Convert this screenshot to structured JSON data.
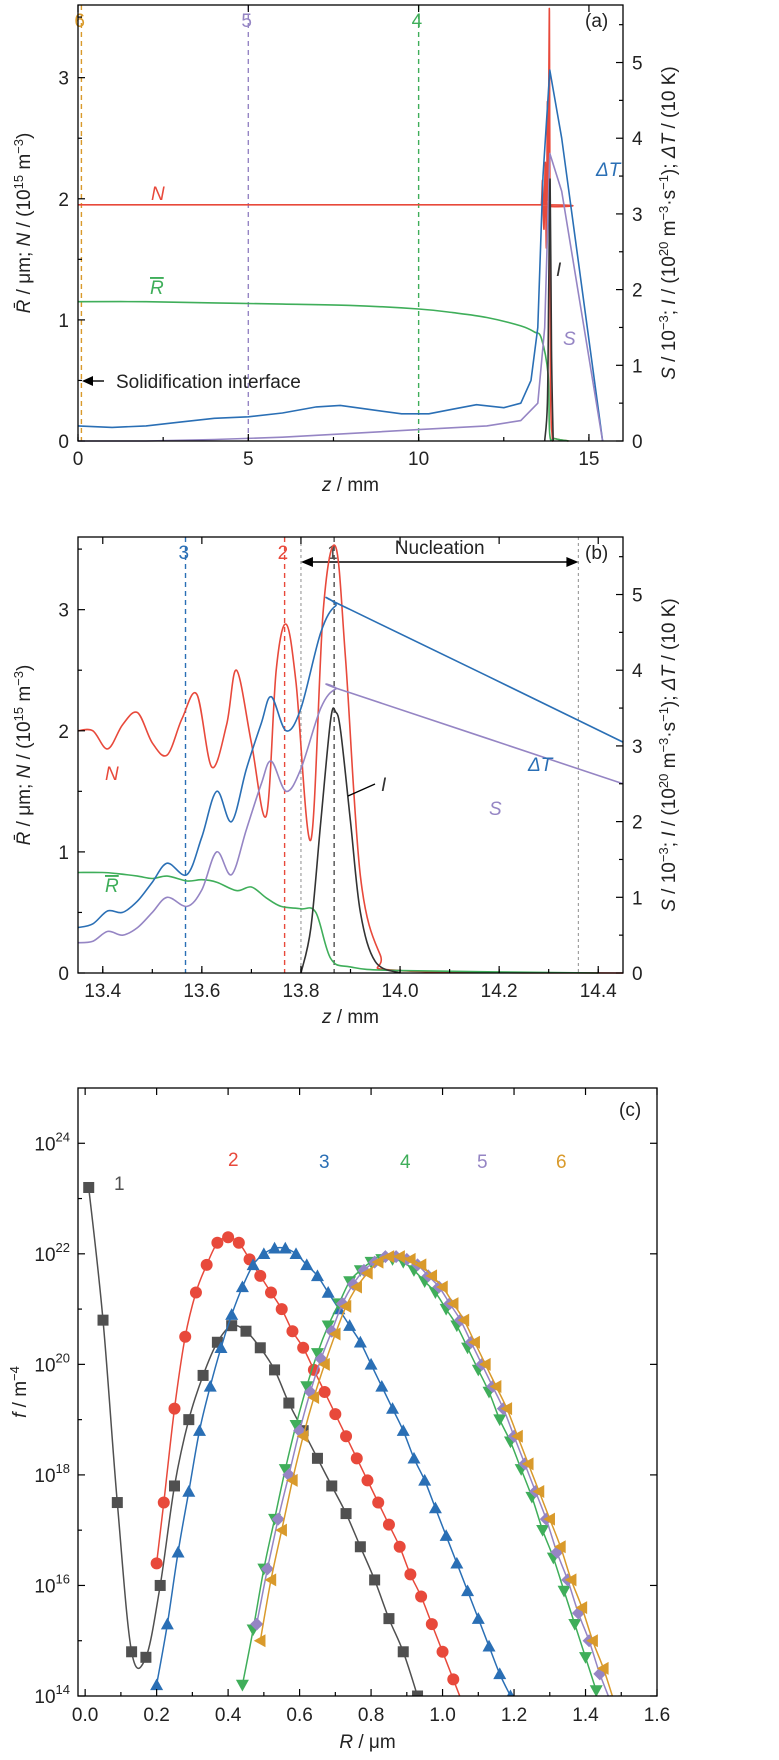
{
  "colors": {
    "N": "#e8493b",
    "Rbar": "#3fae5a",
    "dT": "#2a6fb5",
    "S": "#9585c4",
    "I": "#333333",
    "c1": "#505050",
    "c2": "#e8493b",
    "c3": "#2a6fb5",
    "c4": "#3fae5a",
    "c5": "#9585c4",
    "c6": "#d99a2b",
    "ref": "#a0a0a0"
  },
  "chart_data": [
    {
      "type": "line",
      "panel": "(a)",
      "xlabel": "z / mm",
      "ylabel_left": "R̄ / μm; N / (10¹⁵ m⁻³)",
      "ylabel_right": "S / 10⁻³; I / (10²⁰ m⁻³·s⁻¹); ΔT / (10 K)",
      "xlim": [
        0,
        16
      ],
      "ylim_left": [
        0,
        3.6
      ],
      "ylim_right": [
        0,
        5.76
      ],
      "xticks": [
        "0",
        "5",
        "10",
        "15"
      ],
      "yticks_left": [
        "0",
        "1",
        "2",
        "3"
      ],
      "yticks_right": [
        "0",
        "1",
        "2",
        "3",
        "4",
        "5"
      ],
      "vlines": [
        {
          "label": "6",
          "x": 0.1,
          "color": "#d99a2b"
        },
        {
          "label": "5",
          "x": 5.0,
          "color": "#9585c4"
        },
        {
          "label": "4",
          "x": 10.0,
          "color": "#3fae5a"
        }
      ],
      "annotation": "Solidification interface",
      "series": [
        {
          "name": "N",
          "axis": "left",
          "x": [
            0,
            13.5,
            13.6,
            13.64,
            13.68,
            13.72,
            13.75,
            13.78,
            13.8,
            13.84,
            13.87,
            13.92,
            14.0,
            14.4
          ],
          "y": [
            1.95,
            1.95,
            1.95,
            2.15,
            1.75,
            2.3,
            1.6,
            2.8,
            2.0,
            3.55,
            0.6,
            0.05,
            0.02,
            0.0
          ]
        },
        {
          "name": "R̄",
          "axis": "left",
          "x": [
            0,
            2,
            4,
            6,
            8,
            10,
            11,
            12,
            13,
            13.4,
            13.6,
            13.8,
            13.85,
            14.0,
            14.4
          ],
          "y": [
            1.15,
            1.15,
            1.14,
            1.13,
            1.12,
            1.09,
            1.06,
            1.02,
            0.95,
            0.9,
            0.85,
            0.55,
            0.05,
            0.02,
            0.0
          ]
        },
        {
          "name": "ΔT",
          "axis": "right",
          "x": [
            0,
            1,
            2,
            3,
            4,
            5,
            6,
            7,
            7.7,
            8.5,
            9.5,
            10.3,
            11,
            11.7,
            12.5,
            13.0,
            13.3,
            13.5,
            13.65,
            13.85,
            14.2,
            15.4
          ],
          "y": [
            0.2,
            0.18,
            0.2,
            0.25,
            0.3,
            0.32,
            0.37,
            0.45,
            0.47,
            0.42,
            0.36,
            0.36,
            0.42,
            0.48,
            0.44,
            0.5,
            0.8,
            1.5,
            3.5,
            4.9,
            4.0,
            0.0
          ]
        },
        {
          "name": "S",
          "axis": "right",
          "x": [
            0,
            2,
            4,
            6,
            8,
            10,
            12,
            13,
            13.5,
            13.7,
            13.85,
            14.2,
            15.4
          ],
          "y": [
            0.0,
            0.0,
            0.02,
            0.05,
            0.1,
            0.15,
            0.2,
            0.27,
            0.5,
            1.5,
            3.8,
            3.3,
            0.0
          ]
        },
        {
          "name": "I",
          "axis": "right",
          "x": [
            13.7,
            13.78,
            13.82,
            13.86,
            13.9,
            13.95
          ],
          "y": [
            0.0,
            0.5,
            2.0,
            3.45,
            1.2,
            0.0
          ]
        }
      ]
    },
    {
      "type": "line",
      "panel": "(b)",
      "xlabel": "z / mm",
      "ylabel_left": "R̄ / μm; N / (10¹⁵ m⁻³)",
      "ylabel_right": "S / 10⁻³; I / (10²⁰ m⁻³·s⁻¹); ΔT / (10 K)",
      "xlim": [
        13.35,
        14.45
      ],
      "ylim_left": [
        0,
        3.6
      ],
      "ylim_right": [
        0,
        5.76
      ],
      "xticks": [
        "13.4",
        "13.6",
        "13.8",
        "14.0",
        "14.2",
        "14.4"
      ],
      "yticks_left": [
        "0",
        "1",
        "2",
        "3"
      ],
      "yticks_right": [
        "0",
        "1",
        "2",
        "3",
        "4",
        "5"
      ],
      "vlines": [
        {
          "label": "3",
          "x": 13.567,
          "color": "#2a6fb5"
        },
        {
          "label": "2",
          "x": 13.767,
          "color": "#e8493b"
        },
        {
          "label": "1",
          "x": 13.867,
          "color": "#505050"
        }
      ],
      "nucleation_range": [
        13.8,
        14.36
      ],
      "annotation": "Nucleation",
      "series": [
        {
          "name": "N",
          "axis": "left",
          "x": [
            13.35,
            13.38,
            13.41,
            13.44,
            13.47,
            13.5,
            13.53,
            13.56,
            13.59,
            13.62,
            13.65,
            13.67,
            13.7,
            13.73,
            13.75,
            13.77,
            13.79,
            13.82,
            13.845,
            13.87,
            13.89,
            13.92,
            13.96,
            14.0,
            14.45
          ],
          "y": [
            2.0,
            2.0,
            1.85,
            2.05,
            2.15,
            1.9,
            1.8,
            2.1,
            2.3,
            1.7,
            2.05,
            2.5,
            1.9,
            1.3,
            2.5,
            2.88,
            2.4,
            1.1,
            3.0,
            3.52,
            2.6,
            0.8,
            0.15,
            0.02,
            0.0
          ]
        },
        {
          "name": "R̄",
          "axis": "left",
          "x": [
            13.35,
            13.4,
            13.43,
            13.47,
            13.5,
            13.53,
            13.57,
            13.6,
            13.63,
            13.67,
            13.7,
            13.73,
            13.76,
            13.8,
            13.83,
            13.86,
            13.9,
            14.0,
            14.4
          ],
          "y": [
            0.83,
            0.83,
            0.82,
            0.8,
            0.78,
            0.8,
            0.76,
            0.77,
            0.75,
            0.68,
            0.71,
            0.62,
            0.55,
            0.53,
            0.5,
            0.12,
            0.05,
            0.02,
            0.0
          ]
        },
        {
          "name": "ΔT",
          "axis": "right",
          "x": [
            13.35,
            13.38,
            13.41,
            13.44,
            13.47,
            13.5,
            13.53,
            13.57,
            13.6,
            13.63,
            13.66,
            13.69,
            13.72,
            13.74,
            13.77,
            13.8,
            13.84,
            13.87,
            13.9,
            14.45
          ],
          "y": [
            0.6,
            0.65,
            0.82,
            0.8,
            0.95,
            1.2,
            1.45,
            1.3,
            1.8,
            2.4,
            2.0,
            2.7,
            3.3,
            3.65,
            3.2,
            3.5,
            4.5,
            4.85,
            4.8,
            3.05
          ]
        },
        {
          "name": "S",
          "axis": "right",
          "x": [
            13.35,
            13.38,
            13.41,
            13.44,
            13.47,
            13.5,
            13.53,
            13.57,
            13.6,
            13.63,
            13.66,
            13.69,
            13.72,
            13.74,
            13.77,
            13.8,
            13.84,
            13.87,
            13.9,
            14.45
          ],
          "y": [
            0.4,
            0.42,
            0.55,
            0.5,
            0.6,
            0.8,
            1.0,
            0.88,
            1.1,
            1.6,
            1.3,
            1.9,
            2.5,
            2.8,
            2.4,
            2.7,
            3.5,
            3.75,
            3.7,
            2.5
          ]
        },
        {
          "name": "I",
          "axis": "right",
          "x": [
            13.8,
            13.82,
            13.84,
            13.86,
            13.87,
            13.88,
            13.9,
            13.92,
            13.95,
            14.0
          ],
          "y": [
            0.0,
            0.6,
            2.0,
            3.35,
            3.45,
            3.2,
            2.0,
            0.8,
            0.15,
            0.0
          ]
        }
      ]
    },
    {
      "type": "scatter",
      "panel": "(c)",
      "xlabel": "R / μm",
      "ylabel": "f / m⁻⁴",
      "xlim": [
        -0.02,
        1.6
      ],
      "ylim_log10": [
        14,
        25
      ],
      "xticks": [
        "0.0",
        "0.2",
        "0.4",
        "0.6",
        "0.8",
        "1.0",
        "1.2",
        "1.4",
        "1.6"
      ],
      "yticks": [
        {
          "base": "10",
          "exp": "14"
        },
        {
          "base": "10",
          "exp": "16"
        },
        {
          "base": "10",
          "exp": "18"
        },
        {
          "base": "10",
          "exp": "20"
        },
        {
          "base": "10",
          "exp": "22"
        },
        {
          "base": "10",
          "exp": "24"
        }
      ],
      "series": [
        {
          "name": "1",
          "marker": "square",
          "color": "#505050",
          "x": [
            0.01,
            0.05,
            0.09,
            0.13,
            0.17,
            0.21,
            0.25,
            0.29,
            0.33,
            0.37,
            0.41,
            0.45,
            0.49,
            0.53,
            0.57,
            0.61,
            0.65,
            0.69,
            0.73,
            0.77,
            0.81,
            0.85,
            0.89,
            0.93
          ],
          "y_log10": [
            23.2,
            20.8,
            17.5,
            14.8,
            14.7,
            16.0,
            17.8,
            19.0,
            19.8,
            20.4,
            20.7,
            20.6,
            20.3,
            19.9,
            19.3,
            18.8,
            18.3,
            17.8,
            17.3,
            16.7,
            16.1,
            15.4,
            14.8,
            14.0
          ]
        },
        {
          "name": "2",
          "marker": "circle",
          "color": "#e8493b",
          "x": [
            0.2,
            0.22,
            0.25,
            0.28,
            0.31,
            0.34,
            0.37,
            0.4,
            0.43,
            0.46,
            0.49,
            0.52,
            0.55,
            0.58,
            0.61,
            0.64,
            0.67,
            0.7,
            0.73,
            0.76,
            0.79,
            0.82,
            0.85,
            0.88,
            0.91,
            0.94,
            0.97,
            1.0,
            1.03,
            1.06
          ],
          "y_log10": [
            16.4,
            17.5,
            19.2,
            20.5,
            21.3,
            21.8,
            22.2,
            22.3,
            22.2,
            21.9,
            21.6,
            21.3,
            21.0,
            20.6,
            20.3,
            19.9,
            19.5,
            19.1,
            18.7,
            18.3,
            17.9,
            17.5,
            17.1,
            16.7,
            16.2,
            15.8,
            15.3,
            14.8,
            14.3,
            13.8
          ]
        },
        {
          "name": "3",
          "marker": "triangle-up",
          "color": "#2a6fb5",
          "x": [
            0.2,
            0.23,
            0.26,
            0.29,
            0.32,
            0.35,
            0.38,
            0.41,
            0.44,
            0.47,
            0.5,
            0.53,
            0.56,
            0.59,
            0.62,
            0.65,
            0.68,
            0.71,
            0.74,
            0.77,
            0.8,
            0.83,
            0.86,
            0.89,
            0.92,
            0.95,
            0.98,
            1.01,
            1.04,
            1.07,
            1.1,
            1.13,
            1.16,
            1.19
          ],
          "y_log10": [
            14.2,
            15.3,
            16.6,
            17.7,
            18.8,
            19.6,
            20.3,
            20.9,
            21.4,
            21.8,
            22.0,
            22.1,
            22.1,
            22.0,
            21.8,
            21.6,
            21.3,
            21.0,
            20.7,
            20.4,
            20.0,
            19.6,
            19.2,
            18.8,
            18.3,
            17.9,
            17.4,
            16.9,
            16.4,
            15.9,
            15.4,
            14.9,
            14.4,
            14.0
          ]
        },
        {
          "name": "4",
          "marker": "triangle-down",
          "color": "#3fae5a",
          "x": [
            0.44,
            0.47,
            0.5,
            0.53,
            0.56,
            0.59,
            0.62,
            0.65,
            0.68,
            0.71,
            0.74,
            0.77,
            0.8,
            0.83,
            0.86,
            0.89,
            0.92,
            0.95,
            0.98,
            1.01,
            1.04,
            1.07,
            1.1,
            1.13,
            1.16,
            1.19,
            1.22,
            1.25,
            1.28,
            1.31,
            1.34,
            1.37,
            1.4,
            1.43
          ],
          "y_log10": [
            14.2,
            15.2,
            16.3,
            17.2,
            18.1,
            18.9,
            19.6,
            20.2,
            20.7,
            21.1,
            21.5,
            21.7,
            21.85,
            21.9,
            21.9,
            21.85,
            21.7,
            21.5,
            21.3,
            21.0,
            20.7,
            20.3,
            19.9,
            19.5,
            19.0,
            18.6,
            18.1,
            17.6,
            17.0,
            16.5,
            15.9,
            15.3,
            14.7,
            14.1
          ]
        },
        {
          "name": "5",
          "marker": "diamond",
          "color": "#9585c4",
          "x": [
            0.48,
            0.51,
            0.54,
            0.57,
            0.6,
            0.63,
            0.66,
            0.69,
            0.72,
            0.75,
            0.78,
            0.81,
            0.84,
            0.87,
            0.9,
            0.93,
            0.96,
            0.99,
            1.02,
            1.05,
            1.08,
            1.11,
            1.14,
            1.17,
            1.2,
            1.23,
            1.26,
            1.29,
            1.32,
            1.35,
            1.38,
            1.41,
            1.44,
            1.47
          ],
          "y_log10": [
            15.3,
            16.3,
            17.2,
            18.0,
            18.8,
            19.5,
            20.1,
            20.6,
            21.1,
            21.45,
            21.7,
            21.85,
            21.95,
            21.95,
            21.9,
            21.8,
            21.6,
            21.4,
            21.1,
            20.8,
            20.4,
            20.0,
            19.6,
            19.2,
            18.7,
            18.2,
            17.7,
            17.2,
            16.6,
            16.1,
            15.5,
            15.0,
            14.4,
            13.9
          ]
        },
        {
          "name": "6",
          "marker": "triangle-left",
          "color": "#d99a2b",
          "x": [
            0.49,
            0.52,
            0.55,
            0.58,
            0.61,
            0.64,
            0.67,
            0.7,
            0.73,
            0.76,
            0.79,
            0.82,
            0.85,
            0.88,
            0.91,
            0.94,
            0.97,
            1.0,
            1.03,
            1.06,
            1.09,
            1.12,
            1.15,
            1.18,
            1.21,
            1.24,
            1.27,
            1.3,
            1.33,
            1.36,
            1.39,
            1.42,
            1.45,
            1.48
          ],
          "y_log10": [
            15.0,
            16.1,
            17.0,
            17.9,
            18.7,
            19.4,
            20.0,
            20.55,
            21.05,
            21.4,
            21.65,
            21.85,
            21.95,
            21.95,
            21.9,
            21.8,
            21.6,
            21.4,
            21.1,
            20.8,
            20.4,
            20.0,
            19.6,
            19.2,
            18.7,
            18.2,
            17.7,
            17.2,
            16.7,
            16.1,
            15.6,
            15.0,
            14.5,
            13.9
          ]
        }
      ]
    }
  ]
}
